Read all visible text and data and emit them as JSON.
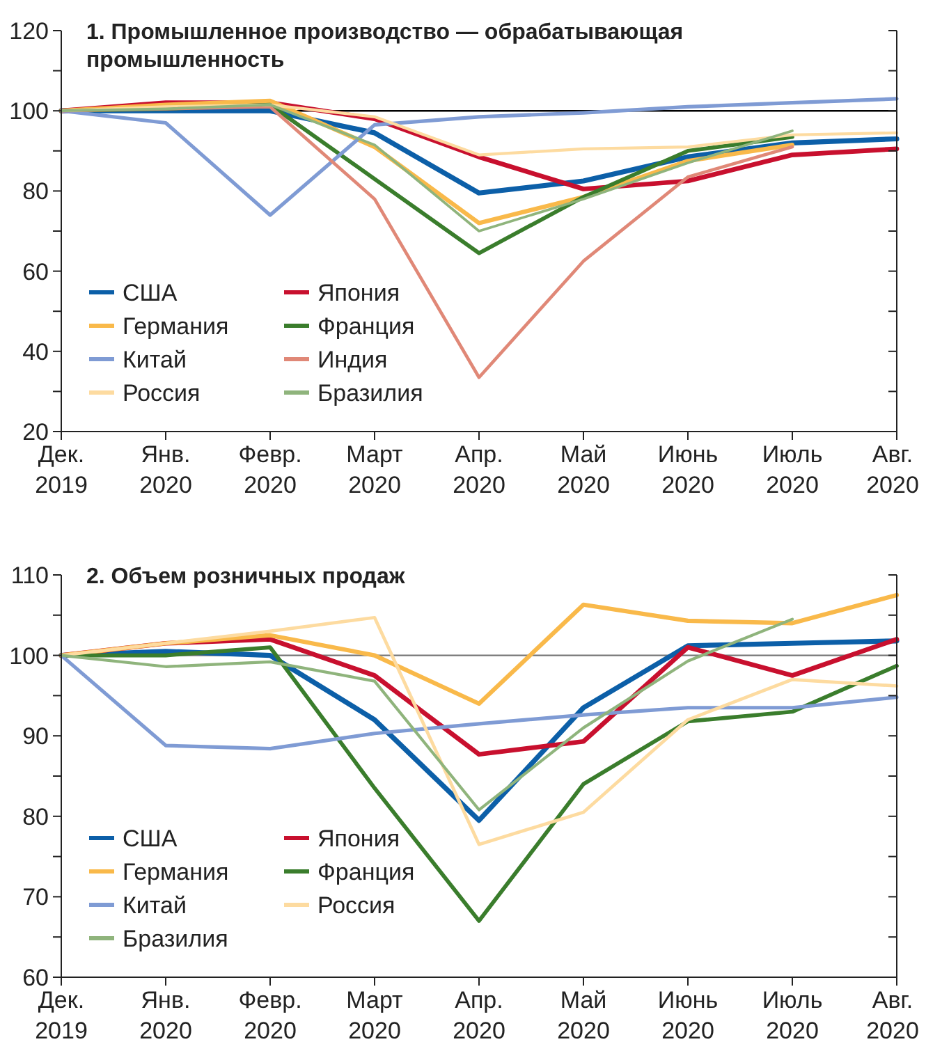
{
  "chart_data": [
    {
      "type": "line",
      "title": "1. Промышленное производство — обрабатывающая промышленность",
      "categories": [
        "Дек. 2019",
        "Янв. 2020",
        "Февр. 2020",
        "Март 2020",
        "Апр. 2020",
        "Май 2020",
        "Июнь 2020",
        "Июль 2020",
        "Авг. 2020"
      ],
      "series": [
        {
          "name": "США",
          "color": "#0c5fa8",
          "values": [
            100,
            100,
            100,
            94.5,
            79.5,
            82.5,
            88.5,
            92,
            93
          ]
        },
        {
          "name": "Япония",
          "color": "#c8102e",
          "values": [
            100,
            102,
            102,
            98,
            88.5,
            80.5,
            82.5,
            89,
            90.5
          ]
        },
        {
          "name": "Германия",
          "color": "#f9b94a",
          "values": [
            100,
            101.5,
            102.5,
            91,
            72,
            78.5,
            87.5,
            91.5,
            null
          ]
        },
        {
          "name": "Франция",
          "color": "#3a7d2c",
          "values": [
            100,
            100.5,
            101.5,
            83,
            64.5,
            78.5,
            90,
            93.5,
            null
          ]
        },
        {
          "name": "Китай",
          "color": "#7f9bd4",
          "values": [
            100,
            97,
            74,
            96.5,
            98.5,
            99.5,
            101,
            102,
            103
          ]
        },
        {
          "name": "Индия",
          "color": "#e08877",
          "values": [
            100,
            100.5,
            101,
            78,
            33.5,
            62.5,
            83.5,
            91,
            null
          ]
        },
        {
          "name": "Россия",
          "color": "#fddba0",
          "values": [
            100,
            101,
            101.5,
            98.5,
            89,
            90.5,
            91,
            94,
            94.5
          ]
        },
        {
          "name": "Бразилия",
          "color": "#8fb47c",
          "values": [
            100,
            100.5,
            101.5,
            91.5,
            70,
            78,
            87,
            95,
            null
          ]
        }
      ],
      "ylim": [
        20,
        120
      ],
      "yticks": [
        20,
        {
          "value": 30,
          "label": null
        },
        40,
        {
          "value": 50,
          "label": null
        },
        60,
        {
          "value": 70,
          "label": null
        },
        80,
        {
          "value": 90,
          "label": null
        },
        100,
        {
          "value": 110,
          "label": null
        },
        120
      ],
      "ref_lines": [
        {
          "axis": "y",
          "value": 100,
          "color": "#000000"
        }
      ],
      "legend": "bottom left",
      "grid": false,
      "marker": "none",
      "line_style": "solid"
    },
    {
      "type": "line",
      "title": "2. Объем розничных продаж",
      "categories": [
        "Дек. 2019",
        "Янв. 2020",
        "Февр. 2020",
        "Март 2020",
        "Апр. 2020",
        "Май 2020",
        "Июнь 2020",
        "Июль 2020",
        "Авг. 2020"
      ],
      "series": [
        {
          "name": "США",
          "color": "#0c5fa8",
          "values": [
            100,
            100.5,
            100,
            92,
            79.5,
            93.5,
            101.2,
            101.5,
            101.8
          ]
        },
        {
          "name": "Япония",
          "color": "#c8102e",
          "values": [
            100,
            101.5,
            102,
            97.5,
            87.7,
            89.3,
            101,
            97.5,
            102
          ]
        },
        {
          "name": "Германия",
          "color": "#f9b94a",
          "values": [
            100,
            101.5,
            102.5,
            100,
            94,
            106.3,
            104.3,
            104,
            107.5
          ]
        },
        {
          "name": "Франция",
          "color": "#3a7d2c",
          "values": [
            100,
            100,
            101,
            83.5,
            67,
            84,
            91.8,
            93,
            98.7
          ]
        },
        {
          "name": "Китай",
          "color": "#7f9bd4",
          "values": [
            100,
            88.8,
            88.4,
            90.3,
            91.5,
            92.6,
            93.5,
            93.5,
            94.8
          ]
        },
        {
          "name": "Россия",
          "color": "#fddba0",
          "values": [
            100,
            101.5,
            103,
            104.7,
            76.5,
            80.5,
            92,
            97,
            96.2
          ]
        },
        {
          "name": "Бразилия",
          "color": "#8fb47c",
          "values": [
            100,
            98.6,
            99.2,
            96.8,
            80.8,
            91,
            99.3,
            104.5,
            null
          ]
        }
      ],
      "ylim": [
        60,
        110
      ],
      "yticks": [
        60,
        {
          "value": 65,
          "label": null
        },
        70,
        {
          "value": 75,
          "label": null
        },
        80,
        {
          "value": 85,
          "label": null
        },
        90,
        {
          "value": 95,
          "label": null
        },
        100,
        {
          "value": 105,
          "label": null
        },
        110
      ],
      "ref_lines": [
        {
          "axis": "y",
          "value": 100,
          "color": "#777777"
        }
      ],
      "legend": "bottom left",
      "grid": false,
      "marker": "none",
      "line_style": "solid"
    }
  ]
}
